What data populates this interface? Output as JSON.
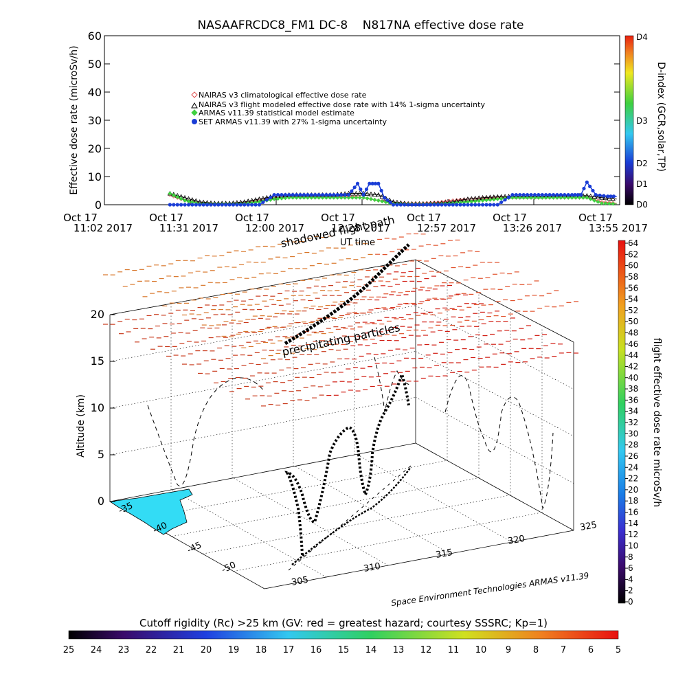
{
  "chart_data": [
    {
      "type": "line",
      "title": "NASAAFRCDC8_FM1 DC-8    N817NA effective dose rate",
      "ylabel": "Effective dose rate (microSv/h)",
      "xlabel": "UT time",
      "x_ticks": [
        {
          "line1": "Oct 17",
          "line2": "11:02 2017"
        },
        {
          "line1": "Oct 17",
          "line2": "11:31 2017"
        },
        {
          "line1": "Oct 17",
          "line2": "12:00 2017"
        },
        {
          "line1": "Oct 17",
          "line2": "12:28 2017"
        },
        {
          "line1": "Oct 17",
          "line2": "12:57 2017"
        },
        {
          "line1": "Oct 17",
          "line2": "13:26 2017"
        },
        {
          "line1": "Oct 17",
          "line2": "13:55 2017"
        }
      ],
      "ylim": [
        0,
        60
      ],
      "y_ticks": [
        "0",
        "10",
        "20",
        "30",
        "40",
        "50",
        "60"
      ],
      "legend_position": "upper-left",
      "x_minutes_ref": "11:02",
      "series": [
        {
          "name": "NAIRAS v3 climatological effective dose rate",
          "color": "#e05050",
          "marker": "diamond",
          "x": [
            "11:24",
            "11:29",
            "11:34",
            "11:39",
            "11:44",
            "11:49",
            "11:54",
            "11:59",
            "12:04",
            "12:09",
            "12:14",
            "12:19",
            "12:24",
            "12:29",
            "12:34",
            "12:39",
            "12:44",
            "12:49",
            "12:54",
            "12:59",
            "13:04",
            "13:09",
            "13:14",
            "13:19",
            "13:24",
            "13:29",
            "13:34",
            "13:39",
            "13:44",
            "13:49",
            "13:54"
          ],
          "values": [
            3.5,
            1.5,
            0.5,
            0.3,
            0.3,
            0.5,
            1.5,
            2.5,
            3.0,
            3.0,
            3.0,
            3.0,
            3.0,
            2.5,
            1.5,
            0.8,
            0.5,
            0.5,
            0.8,
            1.5,
            2.0,
            2.3,
            2.5,
            2.5,
            2.5,
            2.5,
            2.5,
            2.5,
            2.5,
            1.0,
            0.5
          ]
        },
        {
          "name": "NAIRAS v3 flight modeled effective dose rate with 14% 1-sigma uncertainty",
          "color": "#000000",
          "marker": "triangle",
          "x": [
            "11:24",
            "11:29",
            "11:34",
            "11:39",
            "11:44",
            "11:49",
            "11:54",
            "11:59",
            "12:04",
            "12:09",
            "12:14",
            "12:19",
            "12:24",
            "12:29",
            "12:34",
            "12:39",
            "12:44",
            "12:49",
            "12:54",
            "12:59",
            "13:04",
            "13:09",
            "13:14",
            "13:19",
            "13:24",
            "13:29",
            "13:34",
            "13:39",
            "13:44",
            "13:49",
            "13:54"
          ],
          "values": [
            4.0,
            2.5,
            1.0,
            0.5,
            0.5,
            1.0,
            2.0,
            3.0,
            3.5,
            3.5,
            3.5,
            3.5,
            4.0,
            4.0,
            3.5,
            1.0,
            0.3,
            0.3,
            0.5,
            1.0,
            2.0,
            2.5,
            2.8,
            3.0,
            3.0,
            3.0,
            3.2,
            3.2,
            3.2,
            2.5,
            2.0
          ]
        },
        {
          "name": "ARMAS v11.39 statistical model estimate",
          "color": "#40d040",
          "marker": "diamond",
          "x": [
            "11:24",
            "11:29",
            "11:34",
            "11:39",
            "11:44",
            "11:49",
            "11:54",
            "11:59",
            "12:04",
            "12:09",
            "12:14",
            "12:19",
            "12:24",
            "12:29",
            "12:34",
            "12:39",
            "12:44",
            "12:49",
            "12:54",
            "12:59",
            "13:04",
            "13:09",
            "13:14",
            "13:19",
            "13:24",
            "13:29",
            "13:34",
            "13:39",
            "13:44",
            "13:49",
            "13:54"
          ],
          "values": [
            4.0,
            1.5,
            0.3,
            0.2,
            0.2,
            0.3,
            1.0,
            2.0,
            2.5,
            2.5,
            2.5,
            2.5,
            2.5,
            2.5,
            1.5,
            0.3,
            0.2,
            0.2,
            0.2,
            0.5,
            1.0,
            1.5,
            2.0,
            2.5,
            2.5,
            2.5,
            2.5,
            2.5,
            2.5,
            0.5,
            0.3
          ]
        },
        {
          "name": "SET ARMAS v11.39 with 27% 1-sigma uncertainty",
          "color": "#1a3dd6",
          "marker": "circle",
          "x": [
            "11:24",
            "11:29",
            "11:34",
            "11:39",
            "11:44",
            "11:49",
            "11:54",
            "11:59",
            "12:04",
            "12:09",
            "12:14",
            "12:19",
            "12:24",
            "12:27",
            "12:29",
            "12:31",
            "12:34",
            "12:36",
            "12:39",
            "12:44",
            "12:49",
            "12:54",
            "12:59",
            "13:04",
            "13:09",
            "13:14",
            "13:19",
            "13:24",
            "13:29",
            "13:34",
            "13:39",
            "13:42",
            "13:44",
            "13:47",
            "13:51",
            "13:54"
          ],
          "values": [
            0,
            0,
            0,
            0,
            0,
            0,
            0,
            3.5,
            3.5,
            3.5,
            3.5,
            3.5,
            3.5,
            7.5,
            3.5,
            7.5,
            7.5,
            2.5,
            0,
            0,
            0,
            0,
            0,
            0,
            0,
            0,
            3.5,
            3.5,
            3.5,
            3.5,
            3.5,
            3.5,
            8.0,
            3.5,
            3.0,
            3.0
          ]
        }
      ],
      "d_index_colorbar": {
        "label": "D-index (GCR,solar,TP)",
        "ticks": [
          "D0",
          "D1",
          "D2",
          "D3",
          "D4"
        ]
      }
    },
    {
      "type": "scatter",
      "description_labels": {
        "path_label": "shadowed flight path",
        "particles_label": "precipitating particles"
      },
      "zlabel": "Altitude (km)",
      "z_ticks": [
        "0",
        "5",
        "10",
        "15",
        "20"
      ],
      "lat_ticks": [
        "-35",
        "-40",
        "-45",
        "-50"
      ],
      "lon_ticks": [
        "305",
        "310",
        "315",
        "320",
        "325"
      ],
      "credit": "Space Environment Technologies ARMAS v11.39",
      "dose_colorbar": {
        "label": "flight effective dose rate microSv/h",
        "ticks": [
          "0",
          "2",
          "4",
          "6",
          "8",
          "10",
          "12",
          "14",
          "16",
          "18",
          "20",
          "22",
          "24",
          "26",
          "28",
          "30",
          "32",
          "34",
          "36",
          "38",
          "40",
          "42",
          "44",
          "46",
          "48",
          "50",
          "52",
          "54",
          "56",
          "58",
          "60",
          "62",
          "64"
        ]
      },
      "rigidity_colorbar": {
        "label": "Cutoff rigidity (Rc) >25 km (GV: red = greatest hazard; courtesy SSSRC; Kp=1)",
        "ticks": [
          "25",
          "24",
          "23",
          "22",
          "21",
          "20",
          "19",
          "18",
          "17",
          "16",
          "15",
          "14",
          "13",
          "12",
          "11",
          "10",
          "9",
          "8",
          "7",
          "6",
          "5"
        ]
      },
      "flight_altitudes_km": [
        0,
        1,
        3,
        5,
        7,
        9,
        10,
        10.5,
        10.5,
        10.5,
        8,
        5,
        2.5,
        5,
        8,
        9,
        8,
        5,
        3,
        4,
        7,
        10,
        11,
        12,
        12,
        12,
        11,
        11
      ]
    }
  ],
  "colors": {
    "nairas_clim": "#e05050",
    "nairas_flight": "#000000",
    "armas_model": "#40d040",
    "set_armas": "#1a3dd6",
    "land": "#33dcf5",
    "grid": "#000000"
  }
}
